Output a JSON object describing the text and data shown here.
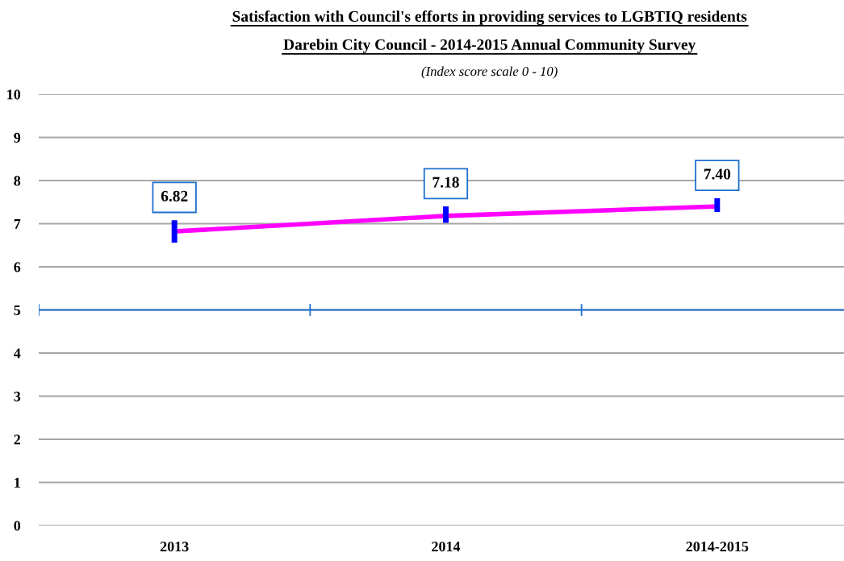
{
  "chart_data": {
    "type": "line",
    "title": "Satisfaction with Council's efforts in providing services to LGBTIQ residents",
    "subtitle": "Darebin City Council - 2014-2015 Annual Community Survey",
    "annotations": [
      "(Index score scale 0 - 10)"
    ],
    "categories": [
      "2013",
      "2014",
      "2014-2015"
    ],
    "series": [
      {
        "color": "#ff00ff",
        "values": [
          6.82,
          7.18,
          7.4
        ],
        "value_labels": [
          "6.82",
          "7.18",
          "7.40"
        ],
        "errors": [
          [
            6.56,
            7.08
          ],
          [
            7.02,
            7.4
          ],
          [
            7.27,
            7.59
          ]
        ]
      }
    ],
    "ylim": [
      0,
      10
    ],
    "yticks": [
      0,
      1,
      2,
      3,
      4,
      5,
      6,
      7,
      8,
      9,
      10
    ],
    "grid": "y",
    "ref_lines": [
      {
        "axis": "y",
        "value": 5,
        "color": "#1f6fd0"
      }
    ]
  }
}
